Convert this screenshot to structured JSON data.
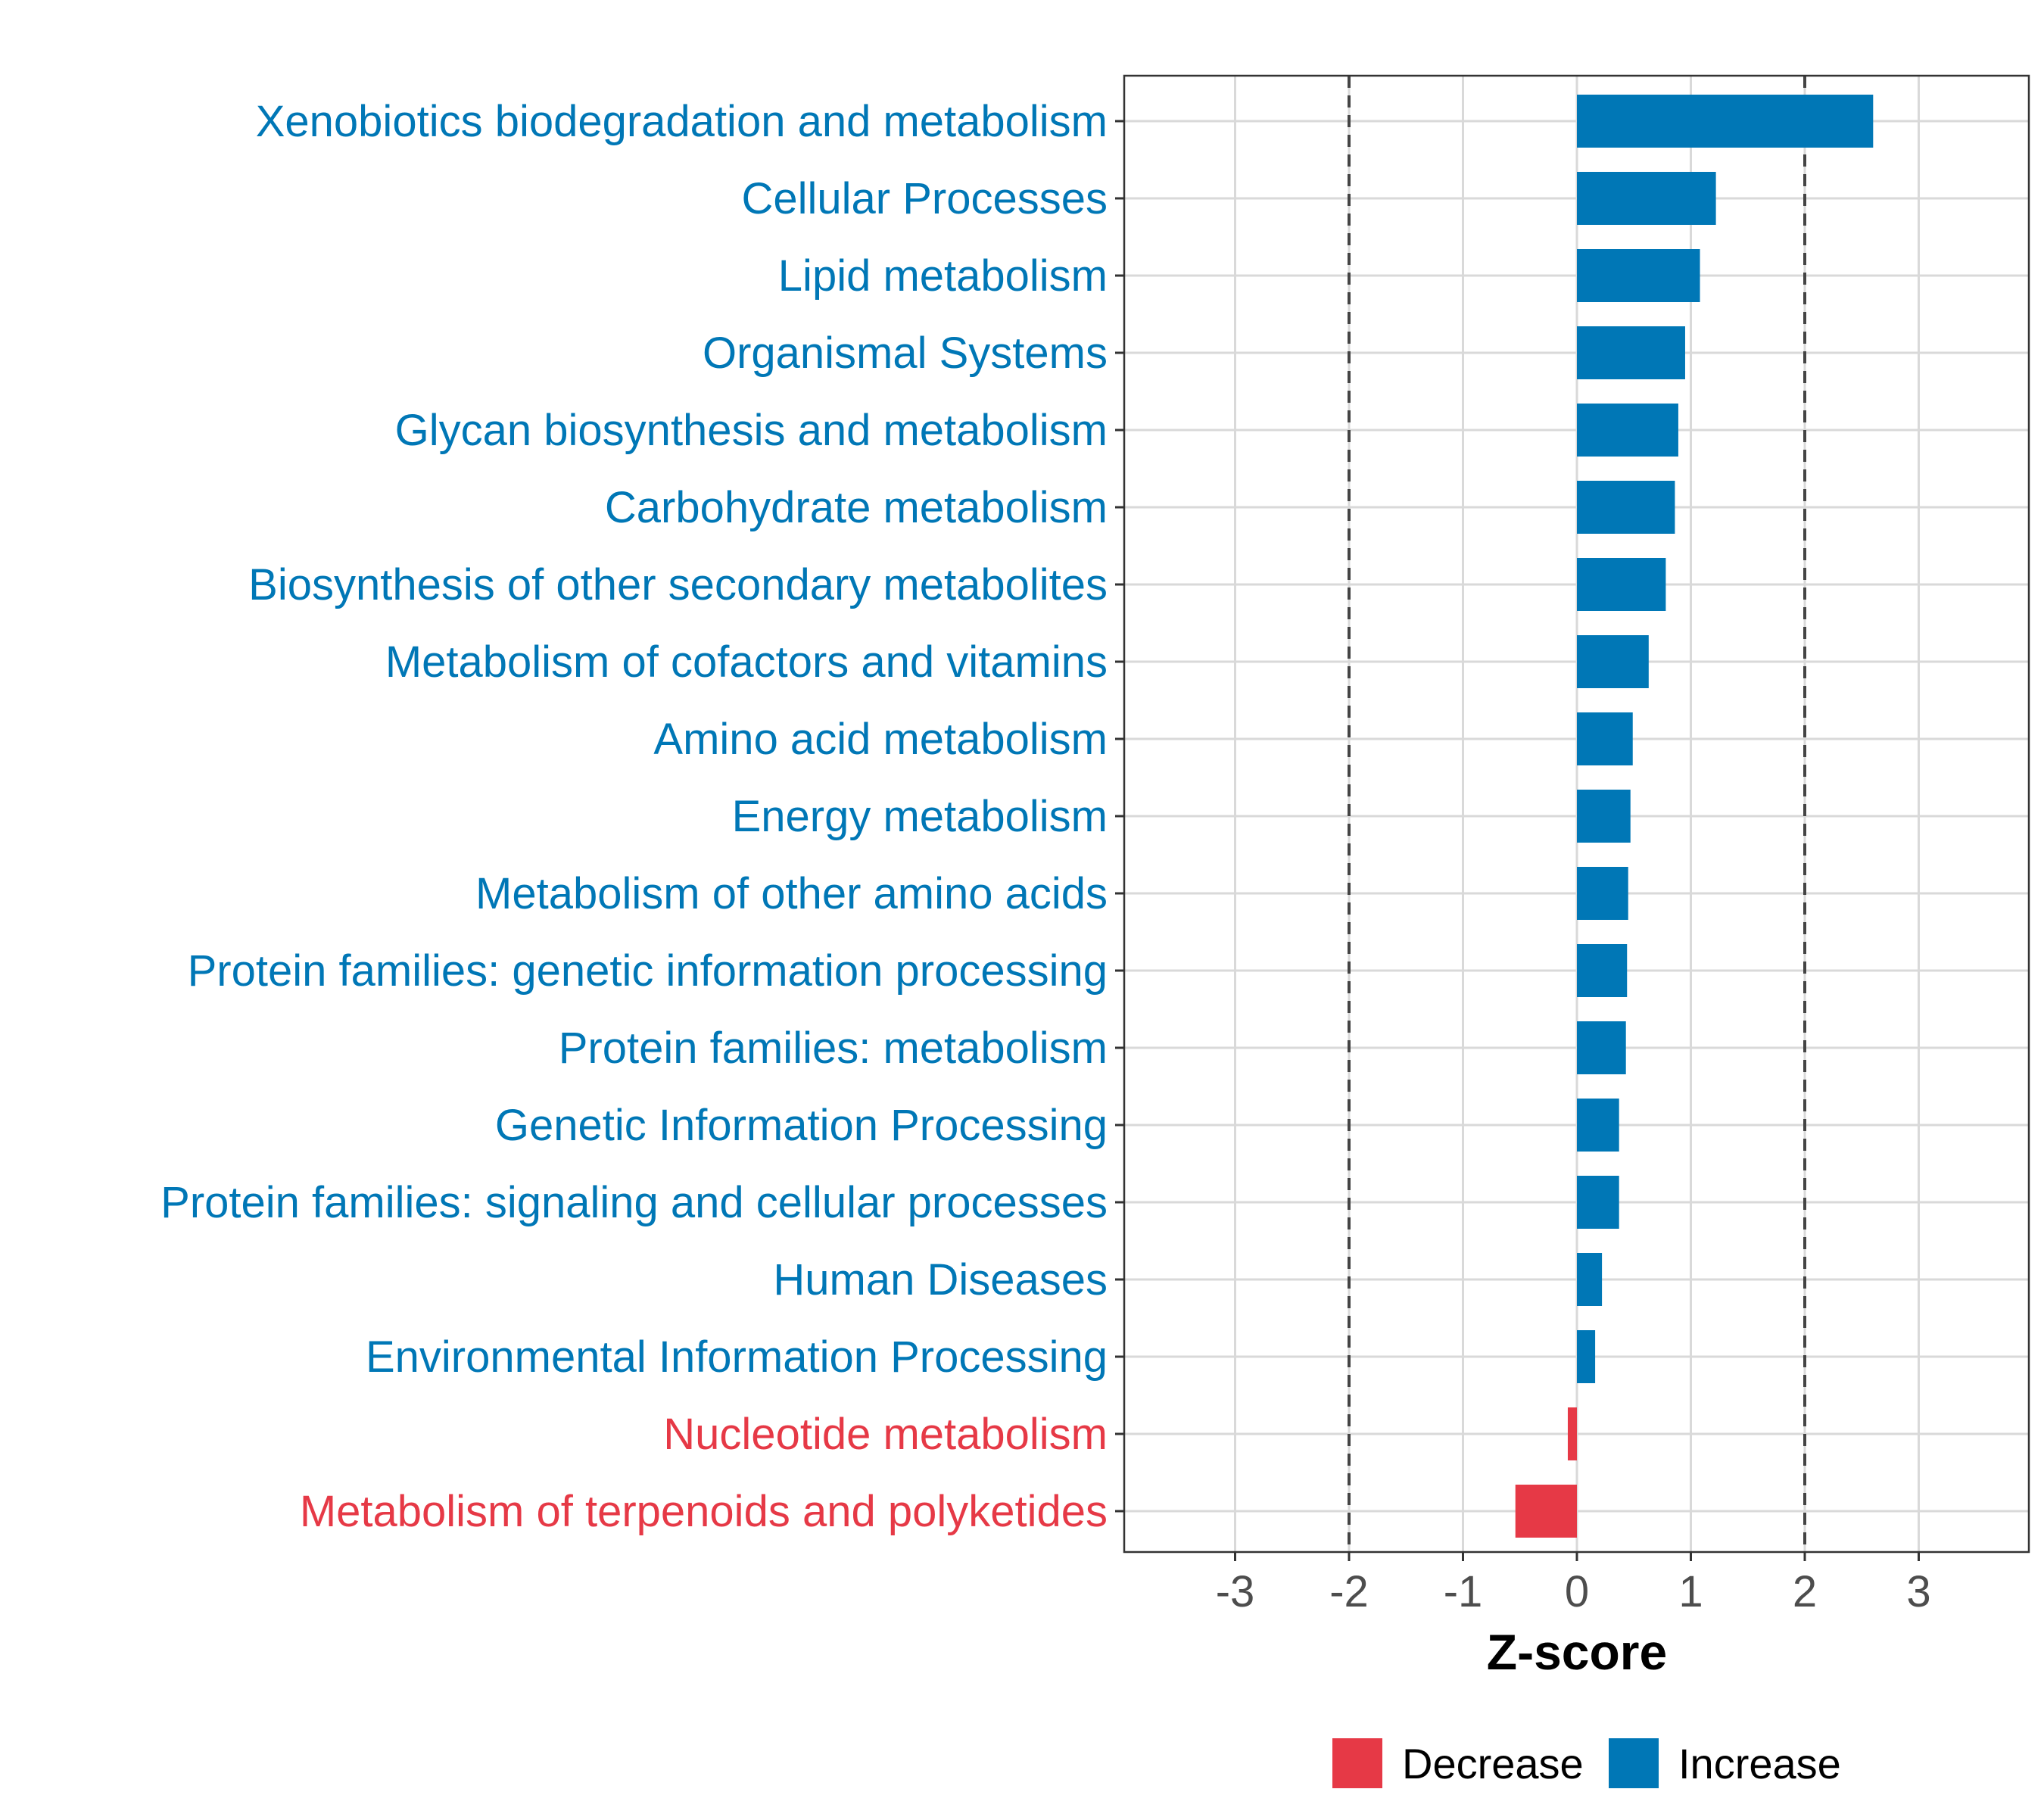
{
  "chart_data": {
    "type": "bar",
    "orientation": "horizontal",
    "title": "",
    "xlabel": "Z-score",
    "ylabel": "",
    "xlim": [
      -3.9,
      3.9
    ],
    "xticks": [
      "-3",
      "-2",
      "-1",
      "0",
      "1",
      "2",
      "3"
    ],
    "reference_lines": [
      -2,
      2
    ],
    "grid": true,
    "legend_position": "bottom",
    "categories": [
      "Xenobiotics biodegradation and metabolism",
      "Cellular Processes",
      "Lipid metabolism",
      "Organismal Systems",
      "Glycan biosynthesis and metabolism",
      "Carbohydrate metabolism",
      "Biosynthesis of other secondary metabolites",
      "Metabolism of cofactors and vitamins",
      "Amino acid metabolism",
      "Energy metabolism",
      "Metabolism of other amino acids",
      "Protein families: genetic information processing",
      "Protein families: metabolism",
      "Genetic Information Processing",
      "Protein families: signaling and cellular processes",
      "Human Diseases",
      "Environmental Information Processing",
      "Nucleotide metabolism",
      "Metabolism of terpenoids and polyketides"
    ],
    "values": [
      2.6,
      1.22,
      1.08,
      0.95,
      0.89,
      0.86,
      0.78,
      0.63,
      0.49,
      0.47,
      0.45,
      0.44,
      0.43,
      0.37,
      0.37,
      0.22,
      0.16,
      -0.08,
      -0.54
    ],
    "groups": [
      "Increase",
      "Increase",
      "Increase",
      "Increase",
      "Increase",
      "Increase",
      "Increase",
      "Increase",
      "Increase",
      "Increase",
      "Increase",
      "Increase",
      "Increase",
      "Increase",
      "Increase",
      "Increase",
      "Increase",
      "Decrease",
      "Decrease"
    ],
    "legend": [
      {
        "name": "Decrease",
        "color": "#e63946"
      },
      {
        "name": "Increase",
        "color": "#0077b6"
      }
    ],
    "colors": {
      "Decrease": "#e63946",
      "Increase": "#0077b6"
    }
  }
}
